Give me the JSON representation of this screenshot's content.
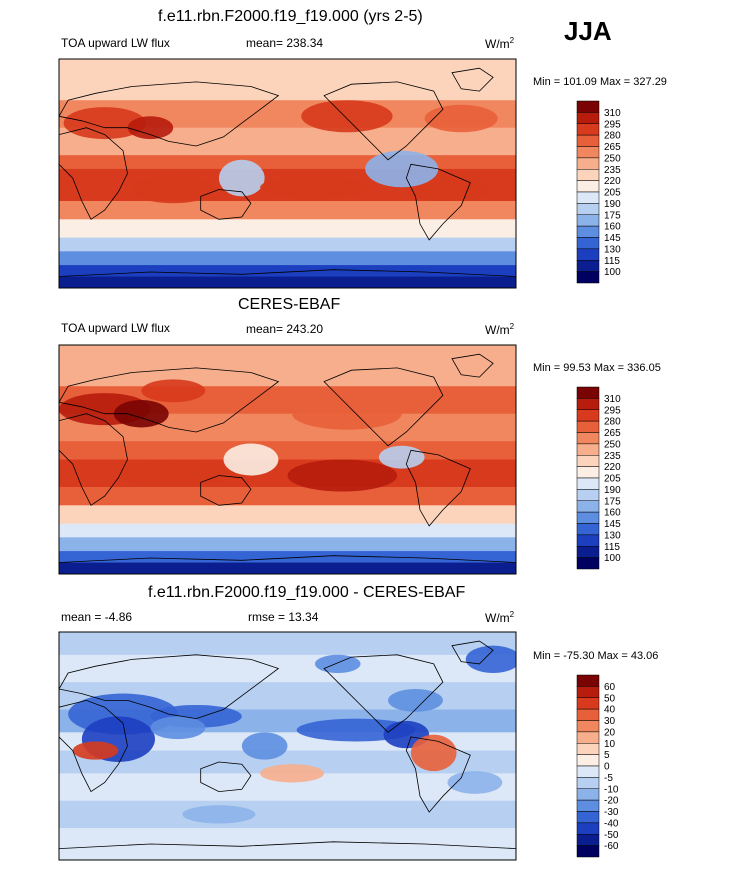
{
  "season": "JJA",
  "chart_data": [
    {
      "type": "heatmap",
      "title": "f.e11.rbn.F2000.f19_f19.000 (yrs 2-5)",
      "left_label": "TOA upward LW flux",
      "stat_label": "mean= 238.34",
      "stat_value": 238.34,
      "units": "W/m",
      "units_sup": "2",
      "minmax_label": "Min = 101.09 Max = 327.29",
      "min": 101.09,
      "max": 327.29,
      "levels": [
        "310",
        "295",
        "280",
        "265",
        "250",
        "235",
        "220",
        "205",
        "190",
        "175",
        "160",
        "145",
        "130",
        "115",
        "100"
      ],
      "colors": [
        "#7a0403",
        "#b71c0c",
        "#d73a1c",
        "#e8603a",
        "#f1875e",
        "#f7ae8c",
        "#fbd4bb",
        "#fbeee4",
        "#dce8f7",
        "#b7cff0",
        "#8cb2ea",
        "#5d8ee0",
        "#3564d4",
        "#1c3fc0",
        "#0b1e8f",
        "#000060"
      ]
    },
    {
      "type": "heatmap",
      "title": "CERES-EBAF",
      "left_label": "TOA upward LW flux",
      "stat_label": "mean= 243.20",
      "stat_value": 243.2,
      "units": "W/m",
      "units_sup": "2",
      "minmax_label": "Min = 99.53 Max = 336.05",
      "min": 99.53,
      "max": 336.05,
      "levels": [
        "310",
        "295",
        "280",
        "265",
        "250",
        "235",
        "220",
        "205",
        "190",
        "175",
        "160",
        "145",
        "130",
        "115",
        "100"
      ],
      "colors": [
        "#7a0403",
        "#b71c0c",
        "#d73a1c",
        "#e8603a",
        "#f1875e",
        "#f7ae8c",
        "#fbd4bb",
        "#fbeee4",
        "#dce8f7",
        "#b7cff0",
        "#8cb2ea",
        "#5d8ee0",
        "#3564d4",
        "#1c3fc0",
        "#0b1e8f",
        "#000060"
      ]
    },
    {
      "type": "heatmap",
      "title": "f.e11.rbn.F2000.f19_f19.000 - CERES-EBAF",
      "left_label": "mean =  -4.86",
      "stat_label": "rmse =  13.34",
      "stat_value": 13.34,
      "mean_value": -4.86,
      "units": "W/m",
      "units_sup": "2",
      "minmax_label": "Min = -75.30 Max =  43.06",
      "min": -75.3,
      "max": 43.06,
      "levels": [
        "60",
        "50",
        "40",
        "30",
        "20",
        "10",
        "5",
        "0",
        "-5",
        "-10",
        "-20",
        "-30",
        "-40",
        "-50",
        "-60"
      ],
      "colors": [
        "#7a0403",
        "#b71c0c",
        "#d73a1c",
        "#e8603a",
        "#f1875e",
        "#f7ae8c",
        "#fbd4bb",
        "#fbeee4",
        "#dce8f7",
        "#b7cff0",
        "#8cb2ea",
        "#5d8ee0",
        "#3564d4",
        "#1c3fc0",
        "#0b1e8f",
        "#000060"
      ]
    }
  ]
}
